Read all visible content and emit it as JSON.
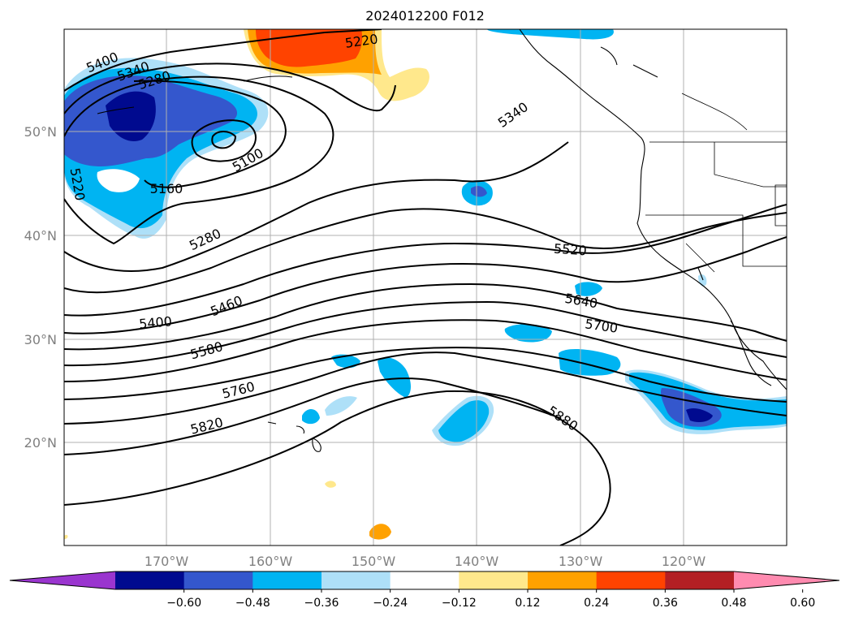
{
  "title": "2024012200 F012",
  "map": {
    "lat_labels": [
      "50°N",
      "40°N",
      "30°N",
      "20°N"
    ],
    "lon_labels": [
      "170°W",
      "160°W",
      "150°W",
      "140°W",
      "130°W",
      "120°W"
    ],
    "contour_labels": [
      "5400",
      "5340",
      "5280",
      "5220",
      "5220",
      "5100",
      "5160",
      "5340",
      "5280",
      "5520",
      "5400",
      "5460",
      "5580",
      "5640",
      "5700",
      "5760",
      "5820",
      "5880"
    ]
  },
  "colorbar": {
    "ticks": [
      "−0.60",
      "−0.48",
      "−0.36",
      "−0.24",
      "−0.12",
      "0.12",
      "0.24",
      "0.36",
      "0.48",
      "0.60"
    ],
    "colors": [
      "#9a35cf",
      "#000a8f",
      "#3457cd",
      "#00b4f2",
      "#aee0f8",
      "#ffffff",
      "#ffe88c",
      "#ffa100",
      "#ff4300",
      "#b31f24",
      "#ff8bb0"
    ]
  }
}
